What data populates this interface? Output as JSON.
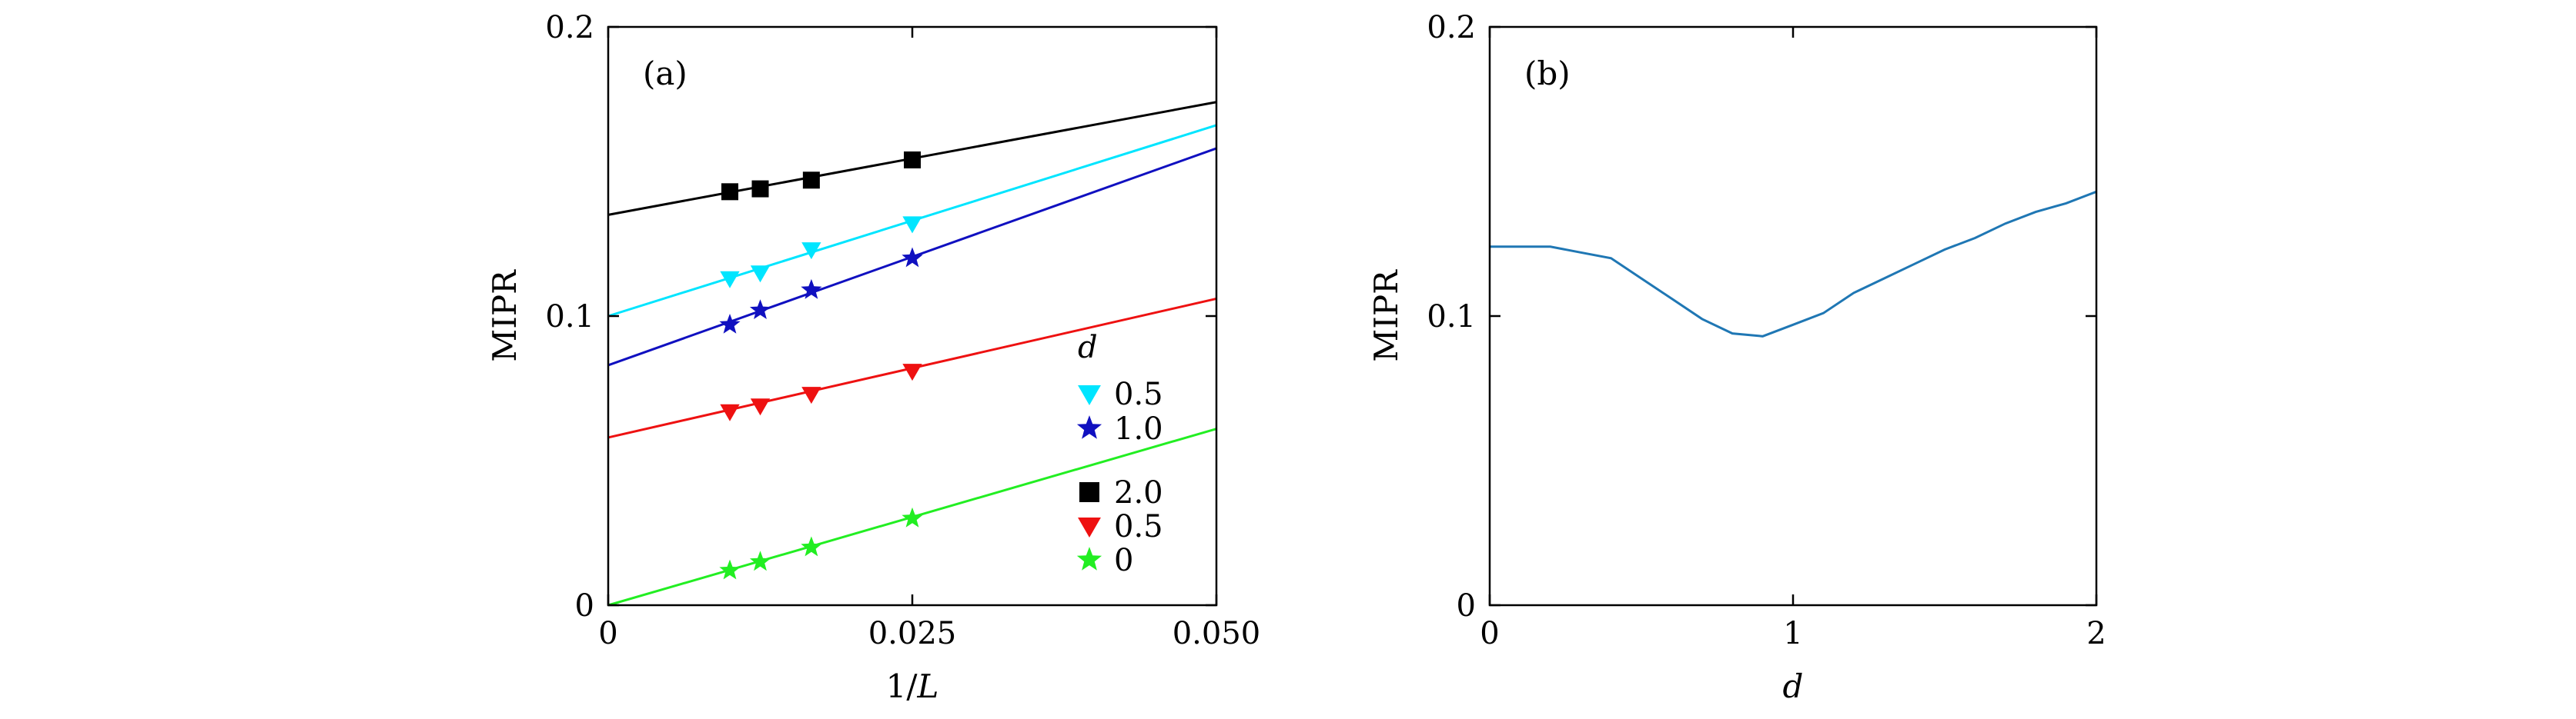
{
  "chart_data": [
    {
      "type": "scatter",
      "panel_label": "(a)",
      "xlabel": "1/L",
      "ylabel": "MIPR",
      "xlim": [
        0,
        0.05
      ],
      "ylim": [
        0,
        0.2
      ],
      "x_ticks": [
        0,
        0.025,
        0.05
      ],
      "x_tick_labels": [
        "0",
        "0.025",
        "0.050"
      ],
      "y_ticks": [
        0,
        0.1,
        0.2
      ],
      "y_tick_labels": [
        "0",
        "0.1",
        "0.2"
      ],
      "grid": false,
      "legend_title": "d",
      "legend_position": "lower-right",
      "series": [
        {
          "name": "0.5",
          "marker": "triangle-down",
          "color": "#00e5ff",
          "x": [
            0.01,
            0.0125,
            0.0167,
            0.025
          ],
          "y": [
            0.113,
            0.115,
            0.123,
            0.132
          ],
          "fit": {
            "x": [
              0,
              0.05
            ],
            "y": [
              0.1,
              0.166
            ]
          }
        },
        {
          "name": "1.0",
          "marker": "star",
          "color": "#1010c0",
          "x": [
            0.01,
            0.0125,
            0.0167,
            0.025
          ],
          "y": [
            0.097,
            0.102,
            0.109,
            0.12
          ],
          "fit": {
            "x": [
              0,
              0.05
            ],
            "y": [
              0.083,
              0.158
            ]
          }
        },
        {
          "name": "2.0",
          "marker": "square",
          "color": "#000000",
          "x": [
            0.01,
            0.0125,
            0.0167,
            0.025
          ],
          "y": [
            0.143,
            0.144,
            0.147,
            0.154
          ],
          "fit": {
            "x": [
              0,
              0.05
            ],
            "y": [
              0.135,
              0.174
            ]
          }
        },
        {
          "name": "0.5",
          "marker": "triangle-down",
          "color": "#ee1111",
          "x": [
            0.01,
            0.0125,
            0.0167,
            0.025
          ],
          "y": [
            0.067,
            0.069,
            0.073,
            0.081
          ],
          "fit": {
            "x": [
              0,
              0.05
            ],
            "y": [
              0.058,
              0.106
            ]
          }
        },
        {
          "name": "0",
          "marker": "star",
          "color": "#22ee22",
          "x": [
            0.01,
            0.0125,
            0.0167,
            0.025
          ],
          "y": [
            0.012,
            0.015,
            0.02,
            0.03
          ],
          "fit": {
            "x": [
              0,
              0.05
            ],
            "y": [
              0.0,
              0.061
            ]
          }
        }
      ]
    },
    {
      "type": "line",
      "panel_label": "(b)",
      "xlabel": "d",
      "ylabel": "MIPR",
      "xlim": [
        0,
        2
      ],
      "ylim": [
        0,
        0.2
      ],
      "x_ticks": [
        0,
        1,
        2
      ],
      "x_tick_labels": [
        "0",
        "1",
        "2"
      ],
      "y_ticks": [
        0,
        0.1,
        0.2
      ],
      "y_tick_labels": [
        "0",
        "0.1",
        "0.2"
      ],
      "grid": false,
      "series": [
        {
          "color": "#1f77b4",
          "x": [
            0,
            0.1,
            0.2,
            0.3,
            0.4,
            0.5,
            0.6,
            0.7,
            0.8,
            0.9,
            1.0,
            1.1,
            1.2,
            1.3,
            1.4,
            1.5,
            1.6,
            1.7,
            1.8,
            1.9,
            2.0
          ],
          "y": [
            0.124,
            0.124,
            0.124,
            0.122,
            0.12,
            0.113,
            0.106,
            0.099,
            0.094,
            0.093,
            0.097,
            0.101,
            0.108,
            0.113,
            0.118,
            0.123,
            0.127,
            0.132,
            0.136,
            0.139,
            0.143
          ]
        }
      ]
    }
  ]
}
